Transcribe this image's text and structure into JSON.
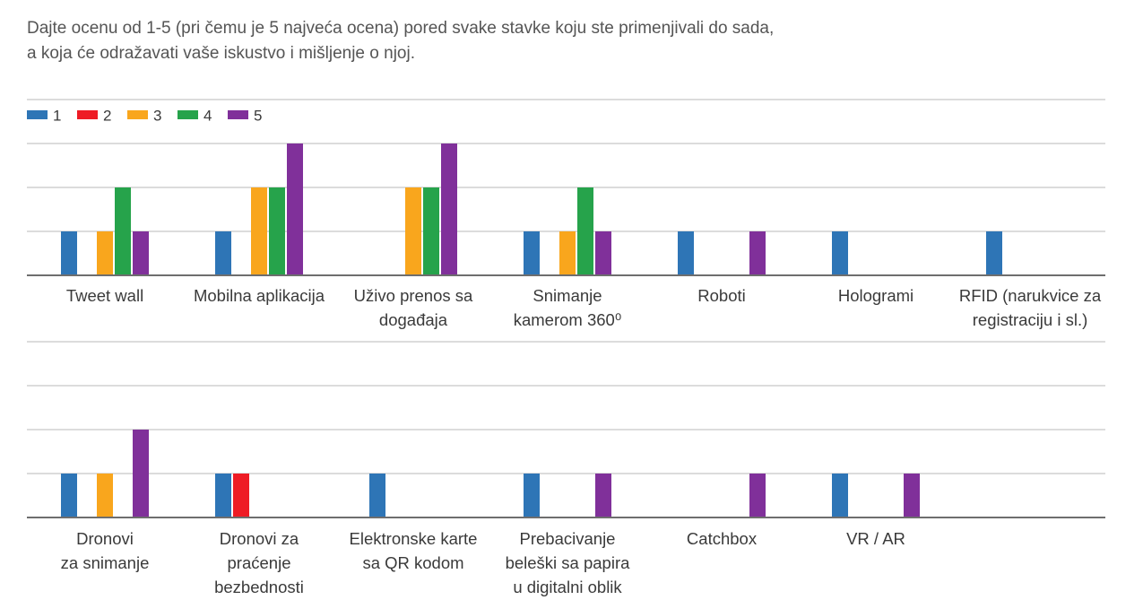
{
  "title": {
    "line1": "Dajte ocenu od 1-5 (pri čemu je 5 najveća ocena) pored svake stavke koju ste primenjivali do sada,",
    "line2": "a koja će odražavati vaše iskustvo i mišljenje o njoj."
  },
  "colors": {
    "1": "#2e75b6",
    "2": "#ee1c25",
    "3": "#f9a61d",
    "4": "#26a34b",
    "5": "#80309a",
    "grid": "#c8c8c8",
    "axis": "#6e6e6e",
    "text": "#3a3a3a"
  },
  "chart_data": [
    {
      "type": "bar",
      "title": "",
      "xlabel": "",
      "ylabel": "",
      "grid": true,
      "legend": "top-left",
      "ylim": [
        0,
        4
      ],
      "categories": [
        [
          "Tweet wall"
        ],
        [
          "Mobilna aplikacija"
        ],
        [
          "Uživo prenos sa",
          "događaja"
        ],
        [
          "Snimanje",
          "kamerom 360⁰"
        ],
        [
          "Roboti"
        ],
        [
          "Hologrami"
        ],
        [
          "RFID (narukvice za",
          "registraciju i sl.)"
        ]
      ],
      "series": [
        {
          "name": "1",
          "values": [
            1,
            1,
            0,
            1,
            1,
            1,
            1
          ]
        },
        {
          "name": "2",
          "values": [
            0,
            0,
            0,
            0,
            0,
            0,
            0
          ]
        },
        {
          "name": "3",
          "values": [
            1,
            2,
            2,
            1,
            0,
            0,
            0
          ]
        },
        {
          "name": "4",
          "values": [
            2,
            2,
            2,
            2,
            0,
            0,
            0
          ]
        },
        {
          "name": "5",
          "values": [
            1,
            3,
            3,
            1,
            1,
            0,
            0
          ]
        }
      ]
    },
    {
      "type": "bar",
      "title": "",
      "xlabel": "",
      "ylabel": "",
      "grid": true,
      "ylim": [
        0,
        4
      ],
      "categories": [
        [
          "Dronovi",
          "za snimanje"
        ],
        [
          "Dronovi za",
          "praćenje",
          "bezbednosti"
        ],
        [
          "Elektronske karte",
          "sa QR kodom"
        ],
        [
          "Prebacivanje",
          "beleški sa papira",
          "u digitalni oblik"
        ],
        [
          "Catchbox"
        ],
        [
          "VR / AR"
        ]
      ],
      "series": [
        {
          "name": "1",
          "values": [
            1,
            1,
            1,
            1,
            0,
            1
          ]
        },
        {
          "name": "2",
          "values": [
            0,
            1,
            0,
            0,
            0,
            0
          ]
        },
        {
          "name": "3",
          "values": [
            1,
            0,
            0,
            0,
            0,
            0
          ]
        },
        {
          "name": "4",
          "values": [
            0,
            0,
            0,
            0,
            0,
            0
          ]
        },
        {
          "name": "5",
          "values": [
            2,
            0,
            0,
            1,
            1,
            1
          ]
        }
      ]
    }
  ]
}
